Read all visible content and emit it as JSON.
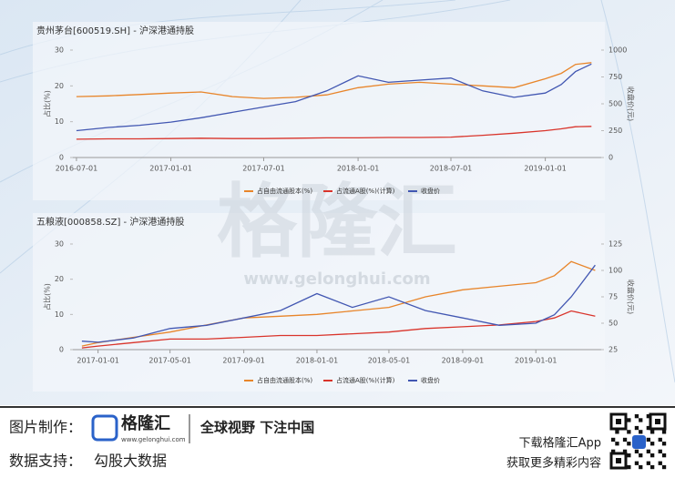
{
  "chart_data": [
    {
      "type": "line",
      "title": "贵州茅台[600519.SH] - 沪深港通持股",
      "y_label": "占比(%)",
      "y2_label": "收盘价(元)",
      "x": [
        "2016-07-01",
        "2016-09-01",
        "2016-11-01",
        "2017-01-01",
        "2017-03-01",
        "2017-05-01",
        "2017-07-01",
        "2017-09-01",
        "2017-11-01",
        "2018-01-01",
        "2018-03-01",
        "2018-05-01",
        "2018-07-01",
        "2018-09-01",
        "2018-11-01",
        "2019-01-01",
        "2019-02-01",
        "2019-03-01",
        "2019-04-01"
      ],
      "xlim": [
        "2016-06-24",
        "2019-04-20"
      ],
      "xticks": [
        "2016-07-01",
        "2017-01-01",
        "2017-07-01",
        "2018-01-01",
        "2018-07-01",
        "2019-01-01"
      ],
      "ylim": [
        0,
        30
      ],
      "yticks": [
        0,
        10,
        20,
        30
      ],
      "y2lim": [
        0,
        1000
      ],
      "y2ticks": [
        0,
        250,
        500,
        750,
        1000
      ],
      "series": [
        {
          "name": "占自由流通股本(%)",
          "color": "#e8852a",
          "values": [
            17,
            17.2,
            17.6,
            18,
            18.3,
            17,
            16.5,
            16.8,
            17.5,
            19.5,
            20.5,
            21,
            20.5,
            20,
            19.5,
            22,
            23.5,
            26,
            26.5
          ]
        },
        {
          "name": "占流通A股(%)(计算)",
          "color": "#d9342b",
          "values": [
            5.1,
            5.2,
            5.2,
            5.3,
            5.4,
            5.3,
            5.3,
            5.4,
            5.5,
            5.5,
            5.6,
            5.6,
            5.7,
            6.2,
            6.8,
            7.5,
            8,
            8.6,
            8.7
          ]
        },
        {
          "name": "收盘价",
          "color": "#4257b2",
          "axis": "y2",
          "values": [
            250,
            280,
            300,
            330,
            370,
            420,
            470,
            520,
            620,
            760,
            700,
            720,
            740,
            620,
            560,
            600,
            680,
            800,
            870
          ]
        }
      ]
    },
    {
      "type": "line",
      "title": "五粮液[000858.SZ] - 沪深港通持股",
      "y_label": "占比(%)",
      "y2_label": "收盘价(元)",
      "x": [
        "2016-12-05",
        "2017-01-01",
        "2017-03-01",
        "2017-05-01",
        "2017-07-01",
        "2017-09-01",
        "2017-11-01",
        "2018-01-01",
        "2018-03-01",
        "2018-05-01",
        "2018-07-01",
        "2018-09-01",
        "2018-11-01",
        "2019-01-01",
        "2019-02-01",
        "2019-03-01",
        "2019-04-10"
      ],
      "xlim": [
        "2016-11-20",
        "2019-04-20"
      ],
      "xticks": [
        "2017-01-01",
        "2017-05-01",
        "2017-09-01",
        "2018-01-01",
        "2018-05-01",
        "2018-09-01",
        "2019-01-01"
      ],
      "ylim": [
        0,
        30
      ],
      "yticks": [
        0,
        10,
        20,
        30
      ],
      "y2lim": [
        25,
        125
      ],
      "y2ticks": [
        25,
        50,
        75,
        100,
        125
      ],
      "series": [
        {
          "name": "占自由流通股本(%)",
          "color": "#e8852a",
          "values": [
            1,
            2,
            3.5,
            5,
            7,
            9,
            9.5,
            10,
            11,
            12,
            15,
            17,
            18,
            19,
            21,
            25,
            22.5
          ]
        },
        {
          "name": "占流通A股(%)(计算)",
          "color": "#d9342b",
          "values": [
            0.5,
            1,
            2,
            3,
            3,
            3.5,
            4,
            4,
            4.5,
            5,
            6,
            6.5,
            7,
            8,
            9,
            11,
            9.5
          ]
        },
        {
          "name": "收盘价",
          "color": "#4257b2",
          "axis": "y2",
          "values": [
            33,
            32,
            36,
            45,
            48,
            55,
            62,
            78,
            65,
            75,
            62,
            55,
            48,
            50,
            58,
            75,
            105
          ]
        }
      ]
    }
  ],
  "watermark": {
    "logo": "格隆汇",
    "url": "www.gelonghui.com"
  },
  "footer": {
    "made_by_label": "图片制作：",
    "logo_name": "格隆汇",
    "logo_url": "www.gelonghui.com",
    "slogan": "全球视野 下注中国",
    "data_label": "数据支持：",
    "data_source": "勾股大数据",
    "app": "下载格隆汇App",
    "more": "获取更多精彩内容"
  }
}
